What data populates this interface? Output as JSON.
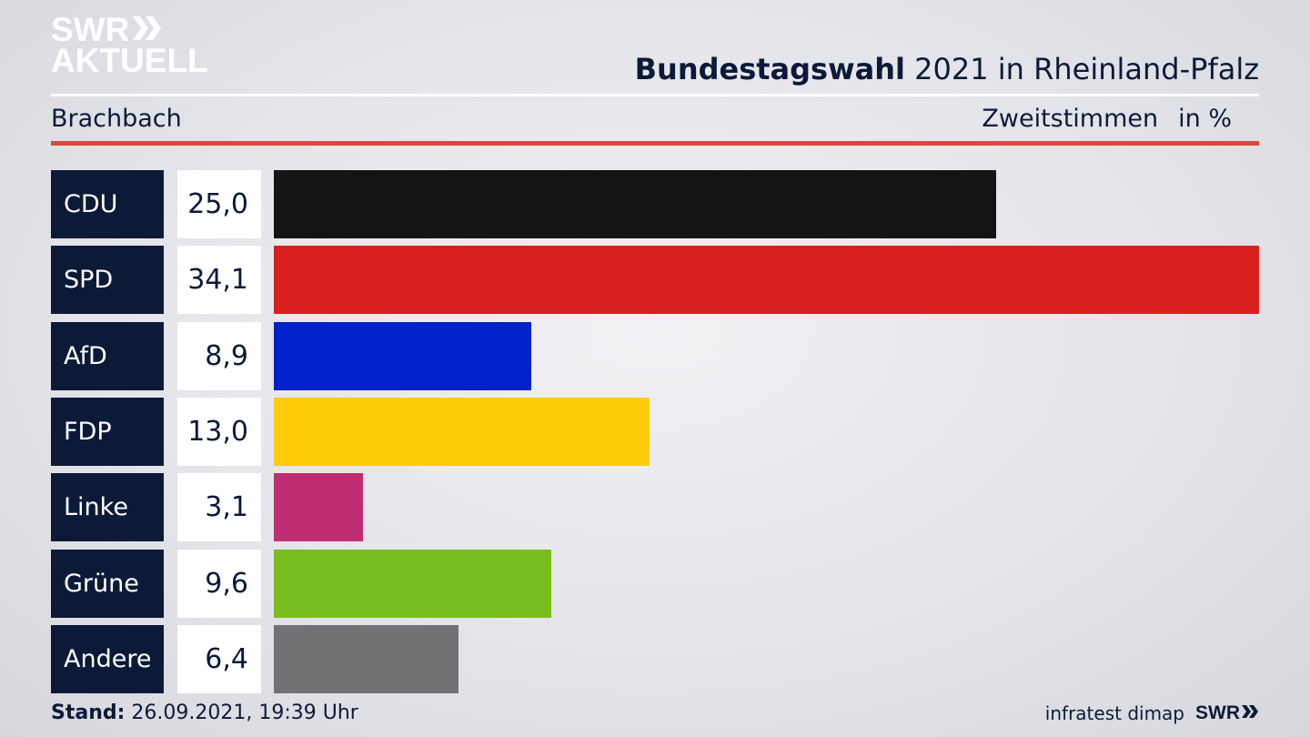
{
  "logo": {
    "line1": "SWR",
    "line2": "AKTUELL"
  },
  "header": {
    "title_bold": "Bundestagswahl",
    "title_rest": " 2021 in Rheinland-Pfalz"
  },
  "region": "Brachbach",
  "subtitle": {
    "measure": "Zweitstimmen",
    "unit": "in %"
  },
  "footer": {
    "stand_label": "Stand:",
    "stand_value": " 26.09.2021, 19:39 Uhr",
    "source": "infratest dimap",
    "brand": "SWR"
  },
  "chart_data": {
    "type": "bar",
    "orientation": "horizontal",
    "title": "Bundestagswahl 2021 in Rheinland-Pfalz",
    "subtitle": "Brachbach",
    "measure": "Zweitstimmen",
    "unit": "in %",
    "categories": [
      "CDU",
      "SPD",
      "AfD",
      "FDP",
      "Linke",
      "Grüne",
      "Andere"
    ],
    "values": [
      25.0,
      34.1,
      8.9,
      13.0,
      3.1,
      9.6,
      6.4
    ],
    "labels": [
      "25,0",
      "34,1",
      "8,9",
      "13,0",
      "3,1",
      "9,6",
      "6,4"
    ],
    "colors": [
      "#141414",
      "#d8201f",
      "#0321c8",
      "#fdcb0a",
      "#bf2e72",
      "#78be1e",
      "#727274"
    ],
    "xlim": [
      0,
      34.1
    ],
    "grid": false,
    "legend": "none"
  }
}
